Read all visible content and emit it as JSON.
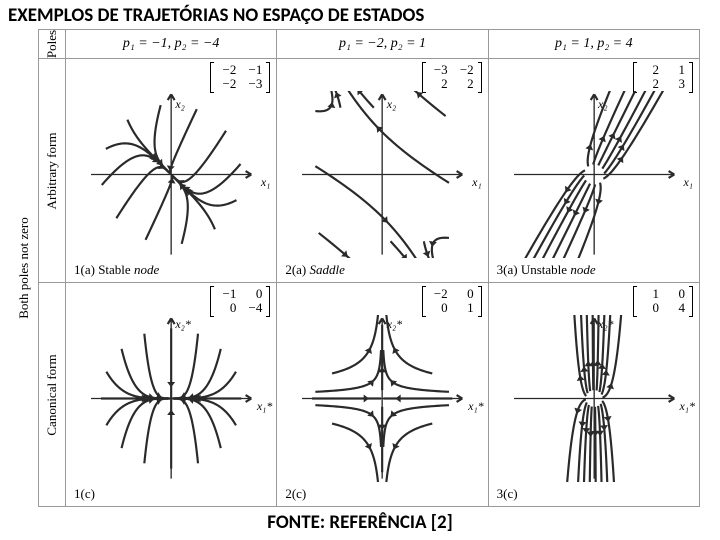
{
  "title": "EXEMPLOS DE TRAJETÓRIAS NO ESPAÇO DE ESTADOS",
  "footer": "FONTE: REFERÊNCIA [2]",
  "outer_label": "Both poles not zero",
  "row_labels": {
    "hdr": "Poles",
    "top": "Arbitrary form",
    "bottom": "Canonical form"
  },
  "columns": [
    {
      "poles": "p₁ = −1, p₂ = −4",
      "matrix_top": [
        [
          "−2",
          "−1"
        ],
        [
          "−2",
          "−3"
        ]
      ],
      "matrix_bot": [
        [
          "−1",
          "0"
        ],
        [
          "0",
          "−4"
        ]
      ],
      "caption_top": {
        "tag": "1(a)",
        "text": "Stable",
        "kind": "node"
      },
      "caption_bot": {
        "tag": "1(c)",
        "text": "",
        "kind": ""
      },
      "type": "stable"
    },
    {
      "poles": "p₁ = −2, p₂ = 1",
      "matrix_top": [
        [
          "−3",
          "−2"
        ],
        [
          "2",
          "2"
        ]
      ],
      "matrix_bot": [
        [
          "−2",
          "0"
        ],
        [
          "0",
          "1"
        ]
      ],
      "caption_top": {
        "tag": "2(a)",
        "text": "Saddle",
        "kind": ""
      },
      "caption_bot": {
        "tag": "2(c)",
        "text": "",
        "kind": ""
      },
      "type": "saddle"
    },
    {
      "poles": "p₁ = 1, p₂ = 4",
      "matrix_top": [
        [
          "2",
          "1"
        ],
        [
          "2",
          "3"
        ]
      ],
      "matrix_bot": [
        [
          "1",
          "0"
        ],
        [
          "0",
          "4"
        ]
      ],
      "caption_top": {
        "tag": "3(a)",
        "text": "Unstable",
        "kind": "node"
      },
      "caption_bot": {
        "tag": "3(c)",
        "text": "",
        "kind": ""
      },
      "type": "unstable"
    }
  ],
  "axis_labels": {
    "top_y": "x₂",
    "top_x": "x₁",
    "bot_y": "x₂*",
    "bot_x": "x₁*"
  },
  "colors": {
    "stroke": "#2a2a2a",
    "bg": "#ffffff",
    "border": "#999999"
  },
  "stroke_width": 1.3
}
